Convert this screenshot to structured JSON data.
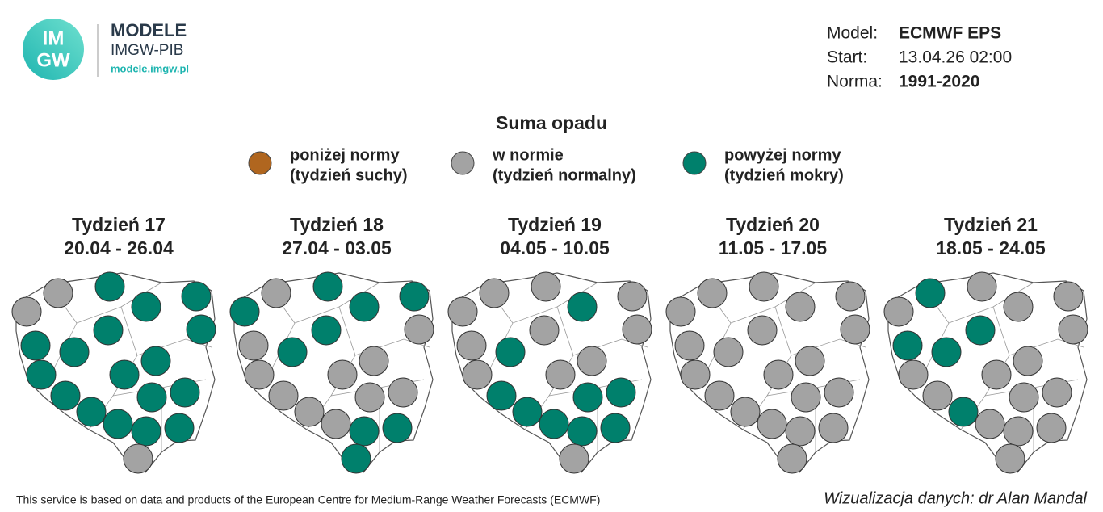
{
  "header": {
    "logo_text": [
      "IM",
      "GW"
    ],
    "brand": "MODELE",
    "brand_sub": "IMGW-PIB",
    "url": "modele.imgw.pl"
  },
  "model_info": [
    {
      "label": "Model:",
      "value": "ECMWF EPS"
    },
    {
      "label": "Start:",
      "value": "13.04.26 02:00"
    },
    {
      "label": "Norma:",
      "value": "1991-2020"
    }
  ],
  "title": "Suma opadu",
  "legend": [
    {
      "color": "#b0661f",
      "lines": [
        "poniżej normy",
        "(tydzień suchy)"
      ]
    },
    {
      "color": "#a3a3a3",
      "lines": [
        "w normie",
        "(tydzień normalny)"
      ]
    },
    {
      "color": "#00806c",
      "lines": [
        "powyżej normy",
        "(tydzień mokry)"
      ]
    }
  ],
  "weeks": [
    {
      "title": "Tydzień 17",
      "dates": "20.04 - 26.04",
      "circles": [
        "#a3a3a3",
        "#a3a3a3",
        "#00806c",
        "#00806c",
        "#00806c",
        "#00806c",
        "#00806c",
        "#00806c",
        "#00806c",
        "#00806c",
        "#00806c",
        "#00806c",
        "#00806c",
        "#00806c",
        "#00806c",
        "#00806c",
        "#00806c",
        "#00806c",
        "#00806c",
        "#a3a3a3"
      ]
    },
    {
      "title": "Tydzień 18",
      "dates": "27.04 - 03.05",
      "circles": [
        "#00806c",
        "#a3a3a3",
        "#00806c",
        "#00806c",
        "#00806c",
        "#a3a3a3",
        "#a3a3a3",
        "#00806c",
        "#00806c",
        "#a3a3a3",
        "#a3a3a3",
        "#a3a3a3",
        "#a3a3a3",
        "#a3a3a3",
        "#a3a3a3",
        "#a3a3a3",
        "#a3a3a3",
        "#00806c",
        "#00806c",
        "#00806c"
      ]
    },
    {
      "title": "Tydzień 19",
      "dates": "04.05 - 10.05",
      "circles": [
        "#a3a3a3",
        "#a3a3a3",
        "#a3a3a3",
        "#00806c",
        "#a3a3a3",
        "#a3a3a3",
        "#a3a3a3",
        "#00806c",
        "#a3a3a3",
        "#a3a3a3",
        "#a3a3a3",
        "#a3a3a3",
        "#00806c",
        "#00806c",
        "#00806c",
        "#00806c",
        "#00806c",
        "#00806c",
        "#00806c",
        "#a3a3a3"
      ]
    },
    {
      "title": "Tydzień 20",
      "dates": "11.05 - 17.05",
      "circles": [
        "#a3a3a3",
        "#a3a3a3",
        "#a3a3a3",
        "#a3a3a3",
        "#a3a3a3",
        "#a3a3a3",
        "#a3a3a3",
        "#a3a3a3",
        "#a3a3a3",
        "#a3a3a3",
        "#a3a3a3",
        "#a3a3a3",
        "#a3a3a3",
        "#a3a3a3",
        "#a3a3a3",
        "#a3a3a3",
        "#a3a3a3",
        "#a3a3a3",
        "#a3a3a3",
        "#a3a3a3"
      ]
    },
    {
      "title": "Tydzień 21",
      "dates": "18.05 - 24.05",
      "circles": [
        "#a3a3a3",
        "#00806c",
        "#a3a3a3",
        "#a3a3a3",
        "#a3a3a3",
        "#a3a3a3",
        "#00806c",
        "#00806c",
        "#00806c",
        "#a3a3a3",
        "#a3a3a3",
        "#a3a3a3",
        "#a3a3a3",
        "#a3a3a3",
        "#a3a3a3",
        "#00806c",
        "#a3a3a3",
        "#a3a3a3",
        "#a3a3a3",
        "#a3a3a3"
      ]
    }
  ],
  "footer": {
    "source": "This service is based on data and products of the European Centre for Medium-Range Weather Forecasts (ECMWF)",
    "credit": "Wizualizacja danych: dr Alan Mandal"
  }
}
